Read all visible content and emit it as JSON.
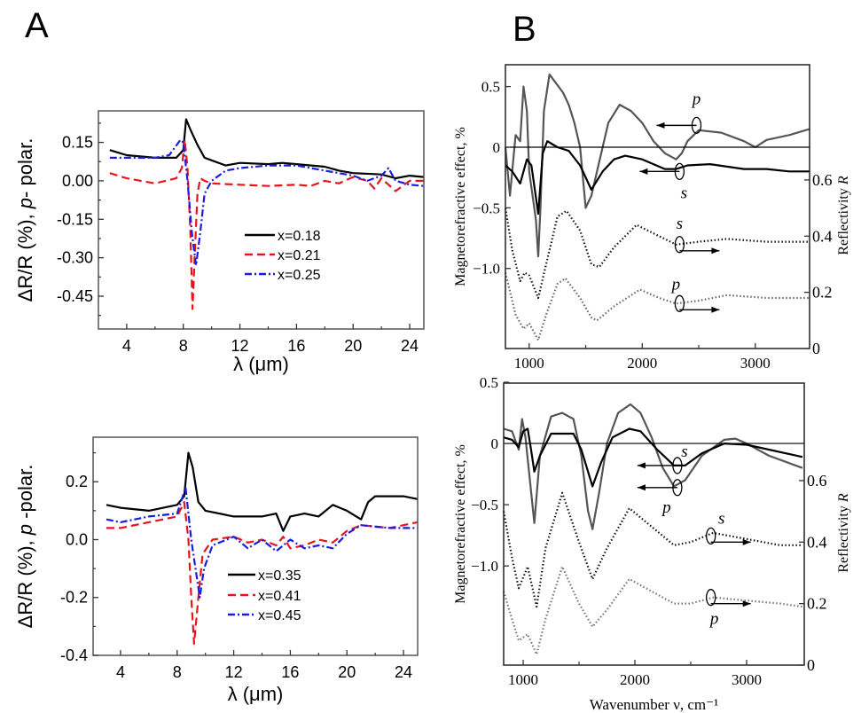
{
  "panel_labels": [
    "A",
    "B"
  ],
  "chart_data": [
    {
      "id": "A-top",
      "type": "line",
      "xlabel": "λ  (μm)",
      "ylabel_parts": [
        "ΔR/R (%),  ",
        "p",
        "- polar."
      ],
      "xlim": [
        2,
        25
      ],
      "ylim": [
        -0.578,
        0.273
      ],
      "xticks": [
        "4",
        "8",
        "12",
        "16",
        "20",
        "24"
      ],
      "yticks": [
        "0.15",
        "0.00",
        "-0.15",
        "-0.30",
        "-0.45"
      ],
      "grid": false,
      "legend_position": "center-right",
      "series": [
        {
          "name": "x=0.18",
          "color": "#000000",
          "dash": "solid",
          "x": [
            2.8,
            4,
            6,
            7.5,
            8,
            8.2,
            8.5,
            9,
            9.5,
            10,
            11,
            12,
            14,
            15,
            16,
            18,
            19,
            20,
            22,
            23,
            24,
            25
          ],
          "y": [
            0.12,
            0.1,
            0.09,
            0.09,
            0.12,
            0.24,
            0.2,
            0.14,
            0.09,
            0.08,
            0.06,
            0.07,
            0.065,
            0.07,
            0.065,
            0.055,
            0.04,
            0.03,
            0.025,
            0.01,
            0.02,
            0.015
          ]
        },
        {
          "name": "x=0.21",
          "color": "#e8141c",
          "dash": "dash",
          "x": [
            2.8,
            4,
            6,
            7.5,
            7.9,
            8.1,
            8.3,
            8.5,
            8.65,
            8.8,
            9,
            9.2,
            9.5,
            10,
            12,
            14,
            16,
            17,
            18,
            19,
            20,
            21,
            21.5,
            22,
            23,
            24,
            25
          ],
          "y": [
            0.03,
            0.01,
            -0.01,
            0.01,
            0.05,
            0.16,
            0.05,
            -0.2,
            -0.5,
            -0.3,
            -0.05,
            0.01,
            0.0,
            -0.01,
            -0.015,
            -0.02,
            -0.015,
            -0.02,
            0.0,
            -0.01,
            0.015,
            0.0,
            -0.03,
            0.01,
            -0.04,
            0.0,
            0.0
          ]
        },
        {
          "name": "x=0.25",
          "color": "#1c1ce0",
          "dash": "dashdot",
          "x": [
            2.8,
            4,
            6,
            7,
            7.8,
            8.0,
            8.3,
            8.6,
            8.9,
            9.2,
            9.5,
            10,
            11,
            12,
            14,
            16,
            18,
            19,
            20,
            21,
            22,
            22.5,
            23,
            24,
            25
          ],
          "y": [
            0.09,
            0.09,
            0.09,
            0.1,
            0.16,
            0.15,
            0.0,
            -0.2,
            -0.33,
            -0.2,
            -0.05,
            0.0,
            0.04,
            0.05,
            0.06,
            0.06,
            0.04,
            0.03,
            0.02,
            0.0,
            0.02,
            0.05,
            0.0,
            -0.015,
            -0.02
          ]
        }
      ]
    },
    {
      "id": "A-bottom",
      "type": "line",
      "xlabel": "λ  (μm)",
      "ylabel_parts": [
        "ΔR/R (%),  ",
        "p",
        " -polar."
      ],
      "xlim": [
        2.06,
        25
      ],
      "ylim": [
        -0.4,
        0.354
      ],
      "xticks": [
        "4",
        "8",
        "12",
        "16",
        "20",
        "24"
      ],
      "yticks": [
        "0.2",
        "0.0",
        "-0.2",
        "-0.4"
      ],
      "grid": false,
      "legend_position": "center-right",
      "series": [
        {
          "name": "x=0.35",
          "color": "#000000",
          "dash": "solid",
          "x": [
            3,
            4,
            6,
            8,
            8.5,
            8.8,
            9.1,
            9.5,
            10,
            12,
            14,
            15,
            15.5,
            16,
            17,
            18,
            19,
            20,
            21,
            21.5,
            22,
            24,
            25
          ],
          "y": [
            0.12,
            0.11,
            0.1,
            0.12,
            0.15,
            0.3,
            0.25,
            0.13,
            0.1,
            0.08,
            0.08,
            0.09,
            0.03,
            0.08,
            0.09,
            0.08,
            0.12,
            0.1,
            0.07,
            0.13,
            0.15,
            0.15,
            0.14
          ]
        },
        {
          "name": "x=0.41",
          "color": "#e8141c",
          "dash": "dash",
          "x": [
            3,
            4,
            6,
            8,
            8.5,
            8.8,
            9.0,
            9.2,
            9.5,
            9.8,
            10.5,
            12,
            13,
            14,
            15,
            15.5,
            16,
            17,
            18,
            19,
            20,
            21,
            23,
            25
          ],
          "y": [
            0.04,
            0.04,
            0.06,
            0.08,
            0.13,
            0.0,
            -0.2,
            -0.36,
            -0.2,
            -0.05,
            0.0,
            0.01,
            -0.01,
            0.0,
            -0.02,
            0.01,
            -0.03,
            -0.02,
            0.0,
            -0.01,
            0.03,
            0.05,
            0.04,
            0.06
          ]
        },
        {
          "name": "x=0.45",
          "color": "#1c1ce0",
          "dash": "dashdot",
          "x": [
            3,
            4,
            6,
            8,
            8.6,
            9.0,
            9.3,
            9.6,
            9.9,
            10.5,
            12,
            13,
            14,
            15,
            16,
            17,
            18,
            19,
            20,
            21,
            23,
            25
          ],
          "y": [
            0.07,
            0.06,
            0.08,
            0.09,
            0.18,
            0.0,
            -0.1,
            -0.2,
            -0.1,
            -0.02,
            0.01,
            -0.03,
            0.0,
            -0.04,
            0.0,
            -0.03,
            -0.02,
            -0.03,
            0.02,
            0.05,
            0.04,
            0.04
          ]
        }
      ]
    },
    {
      "id": "B-top",
      "type": "line",
      "xlabel": "",
      "ylabel": "Magnetorefractive effect, %",
      "y2label_parts": [
        "Reflectivity ",
        "R"
      ],
      "xlim": [
        790,
        3480
      ],
      "ylim": [
        -1.66,
        0.68
      ],
      "y2lim": [
        0,
        1.01
      ],
      "xticks": [
        "1000",
        "2000",
        "3000"
      ],
      "yticks": [
        "0.5",
        "0",
        "-0.5",
        "-1.0"
      ],
      "y2ticks": [
        "0.6",
        "0.4",
        "0.2",
        "0"
      ],
      "zero_line": true,
      "grid": false,
      "annotations": [
        "p",
        "s",
        "s",
        "p"
      ],
      "series": [
        {
          "name": "p",
          "axis": "left",
          "color": "#555555",
          "dash": "solid",
          "x": [
            790,
            830,
            860,
            880,
            920,
            950,
            980,
            1000,
            1060,
            1080,
            1100,
            1130,
            1180,
            1220,
            1300,
            1350,
            1400,
            1450,
            1500,
            1550,
            1600,
            1700,
            1800,
            1900,
            2000,
            2100,
            2200,
            2300,
            2350,
            2400,
            2500,
            2700,
            2900,
            3000,
            3100,
            3300,
            3480
          ],
          "y": [
            0.0,
            -0.4,
            -0.1,
            0.1,
            0.05,
            0.5,
            0.3,
            -0.2,
            -0.6,
            -0.9,
            -0.5,
            0.3,
            0.6,
            0.55,
            0.45,
            0.35,
            0.2,
            0.0,
            -0.5,
            -0.4,
            -0.2,
            0.2,
            0.35,
            0.3,
            0.2,
            0.05,
            -0.05,
            -0.1,
            -0.05,
            0.05,
            0.14,
            0.12,
            0.05,
            0.0,
            0.06,
            0.1,
            0.15
          ]
        },
        {
          "name": "s",
          "axis": "left",
          "color": "#000000",
          "dash": "solid",
          "x": [
            790,
            850,
            920,
            980,
            1020,
            1080,
            1120,
            1160,
            1250,
            1350,
            1450,
            1550,
            1650,
            1750,
            1850,
            2000,
            2200,
            2300,
            2400,
            2600,
            2900,
            3100,
            3300,
            3480
          ],
          "y": [
            -0.15,
            -0.2,
            -0.3,
            -0.1,
            -0.15,
            -0.55,
            -0.05,
            0.05,
            0.0,
            -0.03,
            -0.15,
            -0.35,
            -0.2,
            -0.1,
            -0.07,
            -0.1,
            -0.18,
            -0.18,
            -0.15,
            -0.14,
            -0.18,
            -0.18,
            -0.2,
            -0.2
          ]
        },
        {
          "name": "s",
          "axis": "right",
          "color": "#111111",
          "dash": "dot",
          "x": [
            790,
            850,
            920,
            960,
            1000,
            1080,
            1150,
            1250,
            1330,
            1450,
            1550,
            1620,
            1750,
            1950,
            2100,
            2300,
            2500,
            2750,
            3100,
            3480
          ],
          "y": [
            0.5,
            0.35,
            0.24,
            0.27,
            0.26,
            0.18,
            0.3,
            0.47,
            0.49,
            0.42,
            0.3,
            0.29,
            0.36,
            0.44,
            0.41,
            0.37,
            0.38,
            0.39,
            0.38,
            0.38
          ]
        },
        {
          "name": "p",
          "axis": "right",
          "color": "#666666",
          "dash": "dot",
          "x": [
            790,
            880,
            950,
            1000,
            1080,
            1150,
            1250,
            1320,
            1450,
            1550,
            1600,
            1750,
            1980,
            2150,
            2300,
            2500,
            2750,
            3100,
            3480
          ],
          "y": [
            0.27,
            0.12,
            0.07,
            0.09,
            0.03,
            0.12,
            0.23,
            0.25,
            0.18,
            0.11,
            0.1,
            0.15,
            0.21,
            0.18,
            0.16,
            0.17,
            0.19,
            0.18,
            0.18
          ]
        }
      ]
    },
    {
      "id": "B-bottom",
      "type": "line",
      "xlabel": "Wavenumber ν, cm⁻¹",
      "ylabel": "Magnetorefractive effect, %",
      "y2label_parts": [
        "Reflectivity ",
        "R"
      ],
      "xlim": [
        825,
        3516
      ],
      "ylim": [
        -1.81,
        0.493
      ],
      "y2lim": [
        0,
        0.917
      ],
      "xticks": [
        "1000",
        "2000",
        "3000"
      ],
      "yticks": [
        "0.5",
        "0",
        "-0.5",
        "-1.0"
      ],
      "y2ticks": [
        "0.6",
        "0.4",
        "0.2",
        "0"
      ],
      "zero_line": true,
      "grid": false,
      "annotations": [
        "s",
        "p",
        "s",
        "p"
      ],
      "series": [
        {
          "name": "p",
          "axis": "left",
          "color": "#555555",
          "dash": "solid",
          "x": [
            825,
            900,
            960,
            990,
            1020,
            1060,
            1100,
            1150,
            1250,
            1350,
            1450,
            1520,
            1580,
            1620,
            1680,
            1750,
            1850,
            1960,
            2050,
            2150,
            2250,
            2350,
            2450,
            2600,
            2800,
            2900,
            3000,
            3200,
            3500
          ],
          "y": [
            0.12,
            0.1,
            -0.05,
            0.2,
            0.05,
            -0.3,
            -0.65,
            -0.1,
            0.22,
            0.25,
            0.2,
            -0.1,
            -0.55,
            -0.7,
            -0.4,
            0.0,
            0.25,
            0.32,
            0.25,
            0.05,
            -0.2,
            -0.35,
            -0.3,
            -0.1,
            0.03,
            0.04,
            0.0,
            -0.1,
            -0.2
          ]
        },
        {
          "name": "s",
          "axis": "left",
          "color": "#000000",
          "dash": "solid",
          "x": [
            825,
            900,
            960,
            1000,
            1040,
            1070,
            1100,
            1150,
            1250,
            1450,
            1520,
            1620,
            1700,
            1800,
            1950,
            2050,
            2200,
            2350,
            2450,
            2600,
            2800,
            3000,
            3200,
            3500
          ],
          "y": [
            0.05,
            0.03,
            -0.03,
            0.1,
            0.12,
            -0.05,
            -0.23,
            -0.1,
            0.08,
            0.08,
            -0.05,
            -0.35,
            -0.15,
            0.05,
            0.12,
            0.1,
            -0.05,
            -0.18,
            -0.18,
            -0.08,
            0.0,
            -0.01,
            -0.05,
            -0.11
          ]
        },
        {
          "name": "s",
          "axis": "right",
          "color": "#111111",
          "dash": "dot",
          "x": [
            825,
            900,
            960,
            1040,
            1120,
            1200,
            1350,
            1500,
            1620,
            1750,
            1950,
            2150,
            2350,
            2500,
            2700,
            3000,
            3300,
            3500
          ],
          "y": [
            0.5,
            0.35,
            0.25,
            0.32,
            0.19,
            0.38,
            0.56,
            0.4,
            0.28,
            0.38,
            0.51,
            0.45,
            0.39,
            0.4,
            0.43,
            0.41,
            0.39,
            0.39
          ]
        },
        {
          "name": "p",
          "axis": "right",
          "color": "#777777",
          "dash": "dot",
          "x": [
            825,
            900,
            960,
            1040,
            1120,
            1200,
            1350,
            1500,
            1620,
            1750,
            1950,
            2150,
            2350,
            2500,
            2700,
            3000,
            3300,
            3500
          ],
          "y": [
            0.24,
            0.15,
            0.08,
            0.1,
            0.035,
            0.15,
            0.32,
            0.2,
            0.125,
            0.18,
            0.28,
            0.24,
            0.2,
            0.2,
            0.22,
            0.21,
            0.2,
            0.19
          ]
        }
      ]
    }
  ]
}
